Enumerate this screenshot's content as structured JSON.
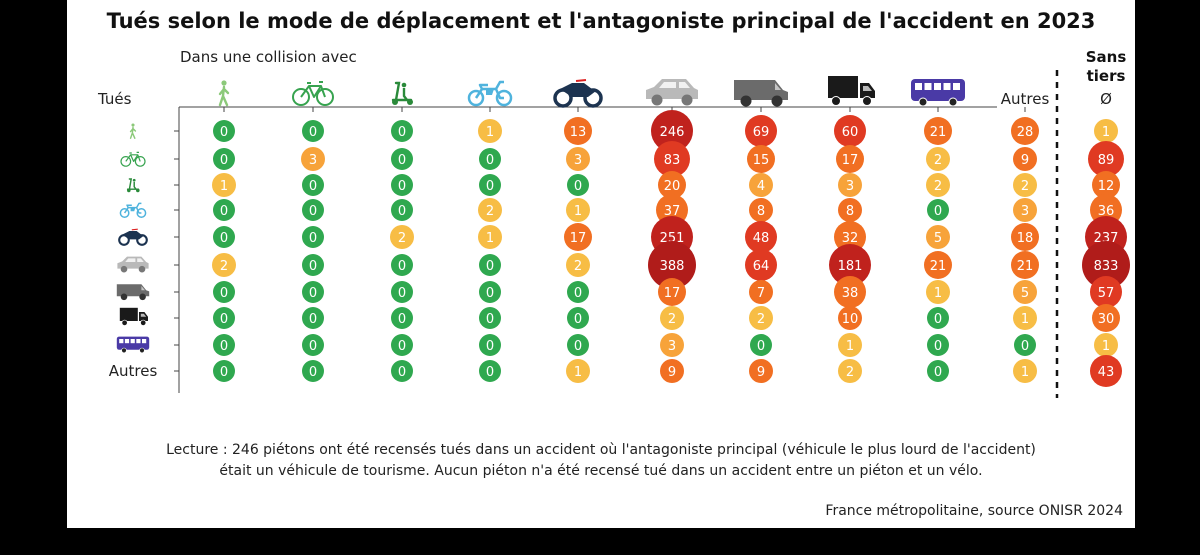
{
  "chart_data": {
    "type": "bubble-matrix",
    "title": "Tués selon le mode de déplacement et l'antagoniste principal de l'accident en 2023",
    "column_group_label": "Dans une collision avec",
    "row_group_label": "Tués",
    "columns": [
      {
        "key": "pieton",
        "icon": "pedestrian-icon",
        "label": ""
      },
      {
        "key": "velo",
        "icon": "bicycle-icon",
        "label": ""
      },
      {
        "key": "edp",
        "icon": "scooter-icon",
        "label": ""
      },
      {
        "key": "cyclo",
        "icon": "moped-icon",
        "label": ""
      },
      {
        "key": "moto",
        "icon": "motorcycle-icon",
        "label": ""
      },
      {
        "key": "vt",
        "icon": "car-icon",
        "label": ""
      },
      {
        "key": "vu",
        "icon": "van-icon",
        "label": ""
      },
      {
        "key": "pl",
        "icon": "truck-icon",
        "label": ""
      },
      {
        "key": "tc",
        "icon": "bus-icon",
        "label": ""
      },
      {
        "key": "autres",
        "icon": "",
        "label": "Autres"
      },
      {
        "key": "sans_tiers",
        "icon": "",
        "label": "Sans tiers",
        "sublabel": "Ø"
      }
    ],
    "rows": [
      {
        "key": "pieton",
        "icon": "pedestrian-icon",
        "label": "",
        "values": [
          0,
          0,
          0,
          1,
          13,
          246,
          69,
          60,
          21,
          28,
          1
        ]
      },
      {
        "key": "velo",
        "icon": "bicycle-icon",
        "label": "",
        "values": [
          0,
          3,
          0,
          0,
          3,
          83,
          15,
          17,
          2,
          9,
          89
        ]
      },
      {
        "key": "edp",
        "icon": "scooter-icon",
        "label": "",
        "values": [
          1,
          0,
          0,
          0,
          0,
          20,
          4,
          3,
          2,
          2,
          12
        ]
      },
      {
        "key": "cyclo",
        "icon": "moped-icon",
        "label": "",
        "values": [
          0,
          0,
          0,
          2,
          1,
          37,
          8,
          8,
          0,
          3,
          36
        ]
      },
      {
        "key": "moto",
        "icon": "motorcycle-icon",
        "label": "",
        "values": [
          0,
          0,
          2,
          1,
          17,
          251,
          48,
          32,
          5,
          18,
          237
        ]
      },
      {
        "key": "vt",
        "icon": "car-icon",
        "label": "",
        "values": [
          2,
          0,
          0,
          0,
          2,
          388,
          64,
          181,
          21,
          21,
          833
        ]
      },
      {
        "key": "vu",
        "icon": "van-icon",
        "label": "",
        "values": [
          0,
          0,
          0,
          0,
          0,
          17,
          7,
          38,
          1,
          5,
          57
        ]
      },
      {
        "key": "pl",
        "icon": "truck-icon",
        "label": "",
        "values": [
          0,
          0,
          0,
          0,
          0,
          2,
          2,
          10,
          0,
          1,
          30
        ]
      },
      {
        "key": "tc",
        "icon": "bus-icon",
        "label": "",
        "values": [
          0,
          0,
          0,
          0,
          0,
          3,
          0,
          1,
          0,
          0,
          1
        ]
      },
      {
        "key": "autres",
        "icon": "",
        "label": "Autres",
        "values": [
          0,
          0,
          0,
          0,
          1,
          9,
          9,
          2,
          0,
          1,
          43
        ]
      }
    ],
    "colors": {
      "zero": "#2fa84f",
      "low": "#f7bd45",
      "mid": "#f7a33a",
      "orange": "#f16f22",
      "red": "#e03a22",
      "dark": "#c0221d",
      "darkest": "#b01c1a",
      "pedestrian": "#8cc97a",
      "bicycle": "#37a34f",
      "scooter": "#2a8a3a",
      "moped": "#4fb3dd",
      "motorcycle": "#1c3350",
      "car": "#b9b9b9",
      "van": "#6b6b6b",
      "truck": "#1a1a1a",
      "bus": "#4a3aa6"
    }
  },
  "note": {
    "line1": "Lecture : 246 piétons ont été recensés tués dans un accident où l'antagoniste principal (véhicule le plus lourd de l'accident)",
    "line2": "était un véhicule de tourisme. Aucun piéton n'a été recensé tué dans un accident entre un piéton et un vélo."
  },
  "source": "France métropolitaine, source ONISR 2024"
}
